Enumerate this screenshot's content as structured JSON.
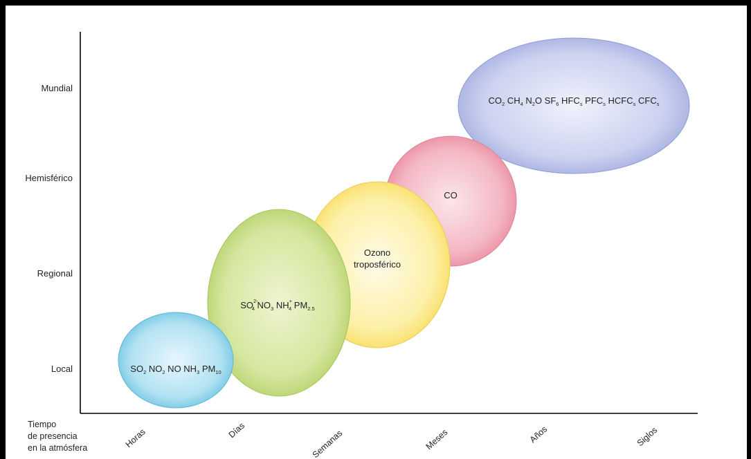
{
  "y_levels": [
    {
      "label": "Mundial"
    },
    {
      "label": "Hemisférico"
    },
    {
      "label": "Regional"
    },
    {
      "label": "Local"
    }
  ],
  "x_axis_title": [
    "Tiempo",
    "de presencia",
    "en la atmósfera"
  ],
  "x_ticks": [
    {
      "label": "Horas"
    },
    {
      "label": "Días"
    },
    {
      "label": "Semanas"
    },
    {
      "label": "Meses"
    },
    {
      "label": "Años"
    },
    {
      "label": "Siglos"
    }
  ],
  "bubbles": {
    "local": {
      "text": "SO2 NO2 NO NH3 PM10",
      "color": "#8fd3ea"
    },
    "regional_days": {
      "text": "SO4 2- NO3 NH4 + PM2.5",
      "color": "#cde08a"
    },
    "ozone": {
      "line1": "Ozono",
      "line2": "troposférico",
      "color": "#fbe68a"
    },
    "co": {
      "text": "CO",
      "color": "#ef9aa8"
    },
    "global": {
      "text": "CO2 CH4 N2O SF6 HFCs PFCs HCFCs CFCs",
      "color": "#b5bde6"
    }
  },
  "colors": {
    "frame": "#000000",
    "axis": "#000000",
    "text": "#222222"
  }
}
